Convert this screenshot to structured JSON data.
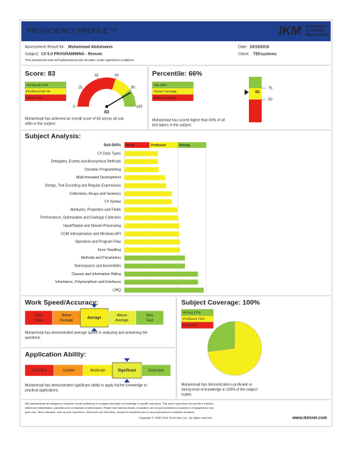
{
  "header": {
    "title": "PROFICIENCY PROFILE ™",
    "logo": "IKM",
    "logo_sub": [
      "International",
      "Knowledge",
      "Measurement"
    ]
  },
  "info": {
    "result_label": "Assessment Result for:",
    "candidate": "Muhammad Abdulwanis",
    "date_label": "Date:",
    "date": "10/15/2016",
    "subject_label": "Subject:",
    "subject": "C# 5.0 PROGRAMMING - Remote",
    "client_label": "Client:",
    "client": "TEKsystems",
    "note": "This assessment was self-administered and not taken under supervised conditions."
  },
  "score": {
    "title": "Score: 83",
    "legend": [
      {
        "label": "Strong 80-100",
        "color": "#8dc63f"
      },
      {
        "label": "Proficient 60-79",
        "color": "#f5ee1b"
      },
      {
        "label": "Weak 0-59",
        "color": "#e8221a"
      }
    ],
    "value": 83,
    "ticks": [
      0,
      20,
      40,
      60,
      80,
      100
    ],
    "text_lines": [
      "Muhammad has achieved an overall score of 83 across all sub-",
      "skills in this subject."
    ]
  },
  "percentile": {
    "title": "Percentile: 66%",
    "legend": [
      {
        "label": "Top 25%",
        "color": "#8dc63f"
      },
      {
        "label": "Above Average",
        "color": "#f5ee1b"
      },
      {
        "label": "Below Average",
        "color": "#e8221a"
      }
    ],
    "value": 66,
    "ylim": [
      0,
      100
    ],
    "ticks": [
      75,
      50
    ],
    "text_lines": [
      "Muhammad has scored higher than 66% of all",
      "test takers in this subject."
    ]
  },
  "analysis": {
    "title": "Subject Analysis:",
    "header": "Sub-Skills",
    "columns": [
      {
        "label": "Weak",
        "color": "#e8221a"
      },
      {
        "label": "Proficient",
        "color": "#f5ee1b"
      },
      {
        "label": "Strong",
        "color": "#8dc63f"
      }
    ],
    "xlim": [
      0,
      100
    ],
    "skills": [
      {
        "name": "C# Data Types",
        "value": 41
      },
      {
        "name": "Delegates, Events and Anonymous Methods",
        "value": 41
      },
      {
        "name": "Dynamic Programming",
        "value": 42
      },
      {
        "name": "Multi-threaded Development",
        "value": 50
      },
      {
        "name": "Strings, Text Encoding and Regular Expressions",
        "value": 51
      },
      {
        "name": "Collections, Arrays and Generics",
        "value": 58
      },
      {
        "name": "C# Syntax",
        "value": 58
      },
      {
        "name": "Attributes, Properties and Fields",
        "value": 65
      },
      {
        "name": "Performance, Optimization and Garbage Collection",
        "value": 66
      },
      {
        "name": "Input/Output and Stream Processing",
        "value": 67
      },
      {
        "name": "COM Interoperation and Windows API",
        "value": 67
      },
      {
        "name": "Operators and Program Flow",
        "value": 68
      },
      {
        "name": "Error Handling",
        "value": 68
      },
      {
        "name": "Methods and Parameters",
        "value": 74
      },
      {
        "name": "Namespaces and Assemblies",
        "value": 74
      },
      {
        "name": "Classes and Information Hiding",
        "value": 90
      },
      {
        "name": "Inheritance, Polymorphism and Interfaces",
        "value": 90
      },
      {
        "name": "LINQ",
        "value": 97
      }
    ]
  },
  "speed": {
    "title": "Work Speed/Accuracy:",
    "segments": [
      {
        "label": [
          "Very",
          "Slow"
        ],
        "color": "#e8221a"
      },
      {
        "label": [
          "Below",
          "Average"
        ],
        "color": "#f7941d"
      },
      {
        "label": [
          "Average"
        ],
        "color": "#f5ee1b",
        "selected": true
      },
      {
        "label": [
          "Above",
          "Average"
        ],
        "color": "#e6ec3a"
      },
      {
        "label": [
          "Very",
          "Fast"
        ],
        "color": "#8dc63f"
      }
    ],
    "text_lines": [
      "Muhammad has demonstrated average speed in analyzing and answering the",
      "questions."
    ]
  },
  "coverage": {
    "title": "Subject Coverage: 100%",
    "segments": [
      {
        "label": "Strong 27%",
        "value": 27,
        "color": "#8dc63f"
      },
      {
        "label": "Proficient 73%",
        "value": 73,
        "color": "#f5ee1b"
      },
      {
        "label": "Weak 0%",
        "value": 0,
        "color": "#e8221a"
      }
    ],
    "text_lines": [
      "Muhammad has demonstrated a proficient or",
      "strong level of knowledge in 100% of the subject",
      "matter."
    ]
  },
  "application": {
    "title": "Application Ability:",
    "segments": [
      {
        "label": "Unskilled",
        "color": "#e8221a"
      },
      {
        "label": "Limited",
        "color": "#f7941d"
      },
      {
        "label": "Moderate",
        "color": "#f5ee1b"
      },
      {
        "label": "Significant",
        "color": "#e6ec3a",
        "selected": true
      },
      {
        "label": "Extensive",
        "color": "#8dc63f"
      }
    ],
    "text_lines": [
      "Muhammad has demonstrated significant ability to apply his/her knowledge to",
      "practical applications."
    ]
  },
  "footer": {
    "disclaimer": [
      "IKM assessments are designed to measure overall proficiency in a subject and depth of knowledge in specific sub-topics. This score report does not provide a criterion-",
      "referenced interpretation, pass/fail score or standard of performance. Please note that test results, in isolation, are not pure predictors of success in employment or any",
      "given role. Other indicators, such as prior experience, references and interviews, should be considered prior to any employment or business decisions."
    ],
    "copyright": "Copyright © 1999-2016 TechChek, Inc., All rights reserved.",
    "url": "www.ikmnet.com"
  }
}
